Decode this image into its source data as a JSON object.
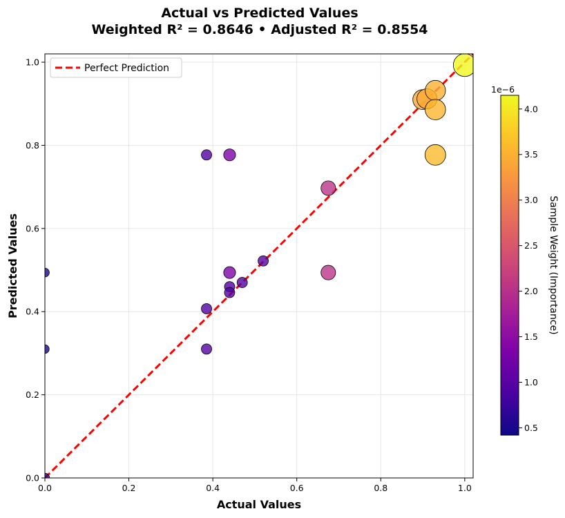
{
  "chart_data": {
    "type": "scatter",
    "title_line1": "Actual vs Predicted Values",
    "title_line2": "Weighted R² = 0.8646  •  Adjusted R² = 0.8554",
    "xlabel": "Actual Values",
    "ylabel": "Predicted Values",
    "xlim": [
      0.0,
      1.02
    ],
    "ylim": [
      0.0,
      1.02
    ],
    "xticks": [
      0.0,
      0.2,
      0.4,
      0.6,
      0.8,
      1.0
    ],
    "xtick_labels": [
      "0.0",
      "0.2",
      "0.4",
      "0.6",
      "0.8",
      "1.0"
    ],
    "yticks": [
      0.0,
      0.2,
      0.4,
      0.6,
      0.8,
      1.0
    ],
    "ytick_labels": [
      "0.0",
      "0.2",
      "0.4",
      "0.6",
      "0.8",
      "1.0"
    ],
    "grid": true,
    "legend": {
      "location": "upper-left",
      "entries": [
        {
          "label": "Perfect Prediction",
          "color": "#ff0000",
          "style": "dashed"
        }
      ]
    },
    "reference_line": {
      "from": [
        0,
        0
      ],
      "to": [
        1.02,
        1.02
      ],
      "color": "#ff0000"
    },
    "colorbar": {
      "label": "Sample Weight (Importance)",
      "scale_label": "1e−6",
      "min": 0.42,
      "max": 4.15,
      "ticks": [
        0.5,
        1.0,
        1.5,
        2.0,
        2.5,
        3.0,
        3.5,
        4.0
      ],
      "tick_labels": [
        "0.5",
        "1.0",
        "1.5",
        "2.0",
        "2.5",
        "3.0",
        "3.5",
        "4.0"
      ],
      "colormap": "plasma"
    },
    "points": [
      {
        "x": 0.0,
        "y": 0.0,
        "weight": 0.7
      },
      {
        "x": 0.0,
        "y": 0.31,
        "weight": 0.5
      },
      {
        "x": 0.0,
        "y": 0.494,
        "weight": 0.55
      },
      {
        "x": 0.385,
        "y": 0.777,
        "weight": 0.95
      },
      {
        "x": 0.44,
        "y": 0.777,
        "weight": 1.35
      },
      {
        "x": 0.385,
        "y": 0.407,
        "weight": 0.95
      },
      {
        "x": 0.385,
        "y": 0.31,
        "weight": 0.95
      },
      {
        "x": 0.44,
        "y": 0.494,
        "weight": 1.35
      },
      {
        "x": 0.44,
        "y": 0.46,
        "weight": 0.95
      },
      {
        "x": 0.44,
        "y": 0.446,
        "weight": 0.95
      },
      {
        "x": 0.47,
        "y": 0.47,
        "weight": 0.95
      },
      {
        "x": 0.52,
        "y": 0.522,
        "weight": 0.95
      },
      {
        "x": 0.675,
        "y": 0.697,
        "weight": 2.05
      },
      {
        "x": 0.675,
        "y": 0.494,
        "weight": 2.05
      },
      {
        "x": 0.9,
        "y": 0.91,
        "weight": 3.4
      },
      {
        "x": 0.91,
        "y": 0.912,
        "weight": 3.45
      },
      {
        "x": 0.93,
        "y": 0.932,
        "weight": 3.5
      },
      {
        "x": 0.93,
        "y": 0.886,
        "weight": 3.55
      },
      {
        "x": 0.93,
        "y": 0.777,
        "weight": 3.6
      },
      {
        "x": 1.0,
        "y": 0.993,
        "weight": 4.15
      }
    ]
  }
}
